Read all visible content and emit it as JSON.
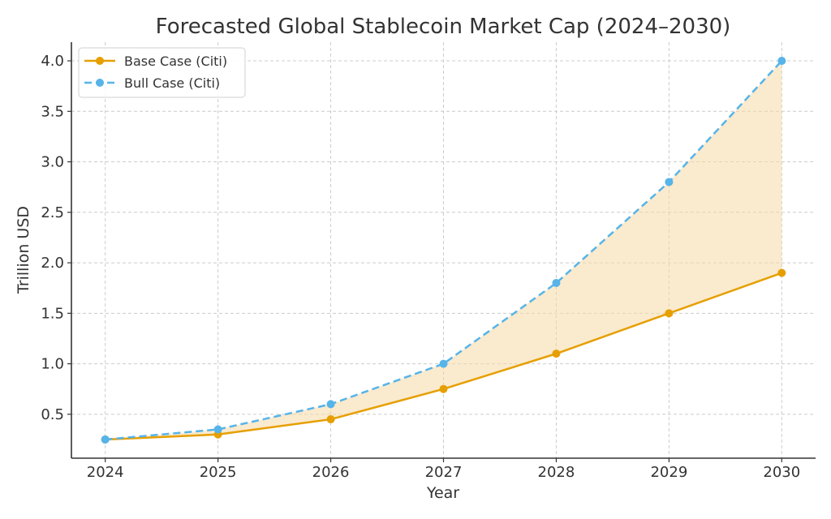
{
  "chart_data": {
    "type": "line",
    "title": "Forecasted Global Stablecoin Market Cap (2024–2030)",
    "xlabel": "Year",
    "ylabel": "Trillion USD",
    "x": [
      2024,
      2025,
      2026,
      2027,
      2028,
      2029,
      2030
    ],
    "x_tick_labels": [
      "2024",
      "2025",
      "2026",
      "2027",
      "2028",
      "2029",
      "2030"
    ],
    "y_ticks": [
      0.5,
      1.0,
      1.5,
      2.0,
      2.5,
      3.0,
      3.5,
      4.0
    ],
    "y_tick_labels": [
      "0.5",
      "1.0",
      "1.5",
      "2.0",
      "2.5",
      "3.0",
      "3.5",
      "4.0"
    ],
    "xlim": [
      2023.7,
      2030.3
    ],
    "ylim": [
      0.065,
      4.185
    ],
    "grid": true,
    "legend_position": "top-left",
    "series": [
      {
        "name": "Base Case (Citi)",
        "values": [
          0.25,
          0.3,
          0.45,
          0.75,
          1.1,
          1.5,
          1.9
        ],
        "color": "#E69F00",
        "style": "solid",
        "marker": "circle"
      },
      {
        "name": "Bull Case (Citi)",
        "values": [
          0.25,
          0.35,
          0.6,
          1.0,
          1.8,
          2.8,
          4.0
        ],
        "color": "#56B4E9",
        "style": "dashed",
        "marker": "circle"
      }
    ],
    "fill_between": {
      "series": [
        "Base Case (Citi)",
        "Bull Case (Citi)"
      ],
      "color": "#F5D9A6",
      "opacity": 0.55
    }
  }
}
